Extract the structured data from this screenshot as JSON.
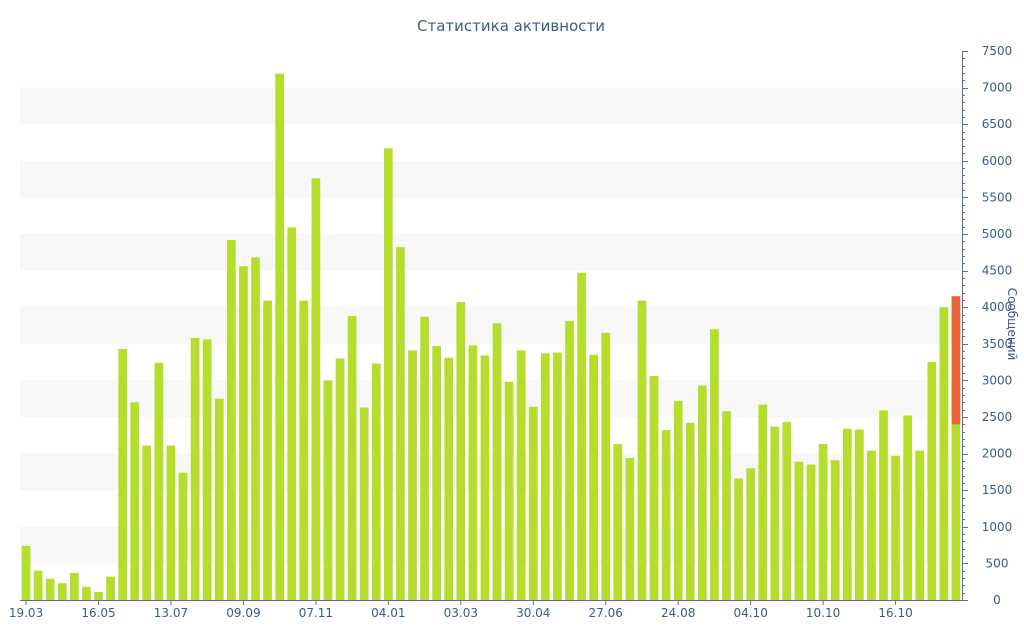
{
  "chart_data": {
    "type": "bar",
    "title": "Статистика активности",
    "ylabel": "Сообщений",
    "xlabel": "",
    "ylim": [
      0,
      7500
    ],
    "y_ticks": [
      0,
      500,
      1000,
      1500,
      2000,
      2500,
      3000,
      3500,
      4000,
      4500,
      5000,
      5500,
      6000,
      6500,
      7000,
      7500
    ],
    "y_axis_side": "right",
    "x_tick_labels": [
      {
        "label": "19.03",
        "index": 0
      },
      {
        "label": "16.05",
        "index": 6
      },
      {
        "label": "13.07",
        "index": 12
      },
      {
        "label": "09.09",
        "index": 18
      },
      {
        "label": "07.11",
        "index": 24
      },
      {
        "label": "04.01",
        "index": 30
      },
      {
        "label": "03.03",
        "index": 36
      },
      {
        "label": "30.04",
        "index": 42
      },
      {
        "label": "27.06",
        "index": 48
      },
      {
        "label": "24.08",
        "index": 54
      },
      {
        "label": "04.10",
        "index": 60
      },
      {
        "label": "10.10",
        "index": 66
      },
      {
        "label": "16.10",
        "index": 72
      }
    ],
    "values": [
      740,
      400,
      290,
      230,
      370,
      180,
      110,
      320,
      3430,
      2700,
      2110,
      3240,
      2110,
      1740,
      3580,
      3560,
      2750,
      4920,
      4560,
      4680,
      4090,
      7190,
      5090,
      4090,
      5760,
      3000,
      3300,
      3880,
      2630,
      3230,
      6170,
      4820,
      3410,
      3870,
      3470,
      3310,
      4070,
      3480,
      3340,
      3780,
      2980,
      3410,
      2640,
      3370,
      3380,
      3810,
      4470,
      3350,
      3650,
      2130,
      1940,
      4090,
      3060,
      2320,
      2720,
      2420,
      2930,
      3700,
      2580,
      1660,
      1800,
      2670,
      2370,
      2430,
      1890,
      1850,
      2130,
      1910,
      2340,
      2330,
      2040,
      2590,
      1970,
      2520,
      2040,
      3250,
      4000,
      4150
    ],
    "highlight_last": {
      "value": 4150,
      "base": 2400
    },
    "colors": {
      "bar": "#b5dd2c",
      "highlight": "#e86638",
      "axis": "#5b6f9a",
      "text": "#3d5a8c",
      "band": "#f7f7f7"
    },
    "grid": "alternating horizontal bands",
    "legend": "none"
  }
}
